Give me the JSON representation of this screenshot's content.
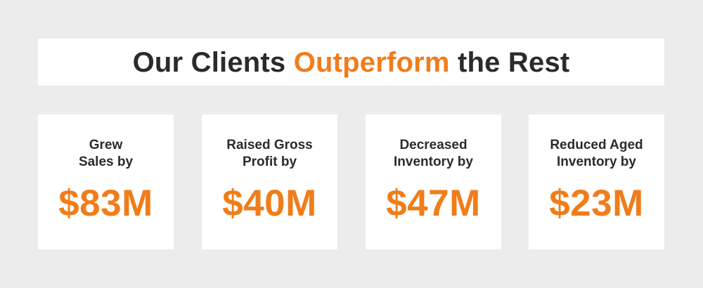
{
  "headline": {
    "part1": "Our Clients ",
    "accent": "Outperform",
    "part2": " the Rest"
  },
  "colors": {
    "accent": "#f07d1a",
    "text": "#2b2b2b",
    "background": "#ececec",
    "card": "#ffffff"
  },
  "stats": [
    {
      "label_line1": "Grew",
      "label_line2": "Sales by",
      "value": "$83M"
    },
    {
      "label_line1": "Raised Gross",
      "label_line2": "Profit by",
      "value": "$40M"
    },
    {
      "label_line1": "Decreased",
      "label_line2": "Inventory by",
      "value": "$47M"
    },
    {
      "label_line1": "Reduced Aged",
      "label_line2": "Inventory by",
      "value": "$23M"
    }
  ]
}
